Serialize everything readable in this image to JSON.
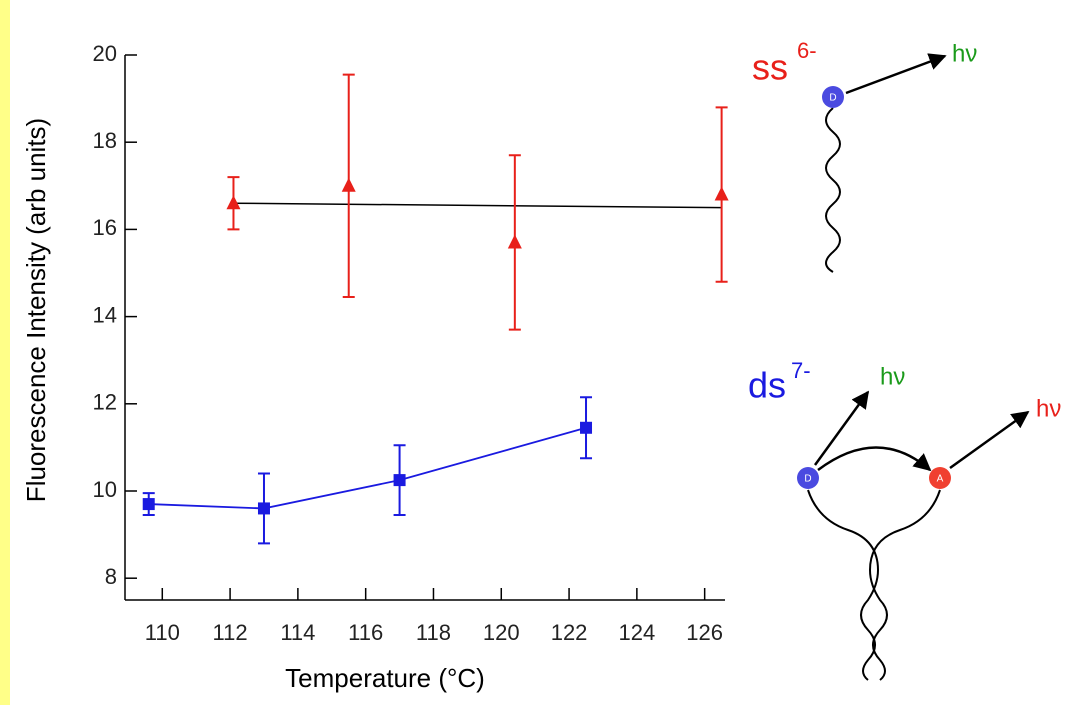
{
  "chart_data": {
    "type": "errorbar",
    "xlabel": "Temperature  (°C)",
    "ylabel": "Fluorescence Intensity   (arb units)",
    "xlim": [
      108.9,
      126.6
    ],
    "ylim": [
      7.5,
      20
    ],
    "xticks": [
      110,
      112,
      114,
      116,
      118,
      120,
      122,
      124,
      126
    ],
    "yticks": [
      8,
      10,
      12,
      14,
      16,
      18,
      20
    ],
    "series": [
      {
        "name": "ss",
        "color": "#e8201a",
        "marker": "triangle",
        "connect": false,
        "x": [
          112.1,
          115.5,
          120.4,
          126.5
        ],
        "values": [
          16.6,
          17.0,
          15.7,
          16.8
        ],
        "errors": [
          0.6,
          2.55,
          2.0,
          2.0
        ]
      },
      {
        "name": "ds",
        "color": "#1a1ae0",
        "marker": "square",
        "connect": true,
        "x": [
          109.6,
          113.0,
          117.0,
          122.5
        ],
        "values": [
          9.7,
          9.6,
          10.25,
          11.45
        ],
        "errors": [
          0.25,
          0.8,
          0.8,
          0.7
        ]
      }
    ],
    "fit": {
      "color": "#000000",
      "x": [
        112.1,
        126.5
      ],
      "values": [
        16.6,
        16.5
      ]
    }
  },
  "diagram": {
    "ss_label": "ss",
    "ss_charge": "6-",
    "ss_emission": "hν",
    "ss_donor": "D",
    "ds_label": "ds",
    "ds_charge": "7-",
    "ds_emission_donor": "hν",
    "ds_emission_acceptor": "hν",
    "ds_donor": "D",
    "ds_acceptor": "A"
  }
}
